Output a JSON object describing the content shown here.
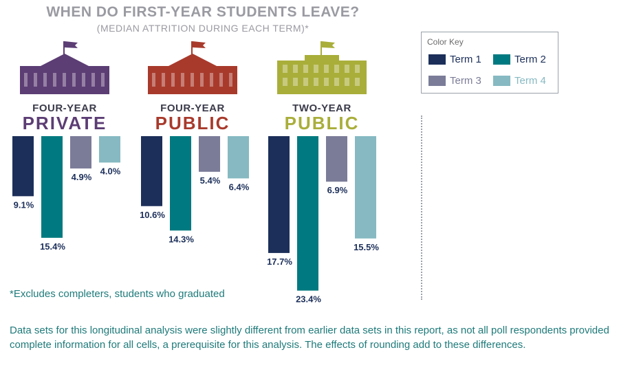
{
  "title": "WHEN DO FIRST-YEAR STUDENTS LEAVE?",
  "subtitle": "(MEDIAN ATTRITION DURING EACH TERM)*",
  "legend": {
    "title": "Color Key",
    "items": [
      {
        "label": "Term 1",
        "color": "#1c2f5a"
      },
      {
        "label": "Term 2",
        "color": "#007a80"
      },
      {
        "label": "Term 3",
        "color": "#7b7c98"
      },
      {
        "label": "Term 4",
        "color": "#86b9c2"
      }
    ]
  },
  "footnote": "*Excludes completers, students who graduated",
  "note": "Data sets for this longitudinal analysis were slightly different from earlier data sets in this report, as not all poll respondents provided complete information for all cells, a prerequisite for this analysis. The effects of rounding add to these differences.",
  "chart_data": {
    "type": "bar",
    "orientation": "downward",
    "unit": "%",
    "series_names": [
      "Term 1",
      "Term 2",
      "Term 3",
      "Term 4"
    ],
    "series_colors": [
      "#1c2f5a",
      "#007a80",
      "#7b7c98",
      "#86b9c2"
    ],
    "groups": [
      {
        "line1": "FOUR-YEAR",
        "line2": "PRIVATE",
        "icon": "university-building-icon",
        "color": "#5c3d74",
        "values": [
          9.1,
          15.4,
          4.9,
          4.0
        ],
        "labels": [
          "9.1%",
          "15.4%",
          "4.9%",
          "4.0%"
        ]
      },
      {
        "line1": "FOUR-YEAR",
        "line2": "PUBLIC",
        "icon": "university-building-icon",
        "color": "#a83a2c",
        "values": [
          10.6,
          14.3,
          5.4,
          6.4
        ],
        "labels": [
          "10.6%",
          "14.3%",
          "5.4%",
          "6.4%"
        ]
      },
      {
        "line1": "TWO-YEAR",
        "line2": "PUBLIC",
        "icon": "college-building-icon",
        "color": "#a9ae3a",
        "values": [
          17.7,
          23.4,
          6.9,
          15.5
        ],
        "labels": [
          "17.7%",
          "23.4%",
          "6.9%",
          "15.5%"
        ]
      }
    ]
  }
}
